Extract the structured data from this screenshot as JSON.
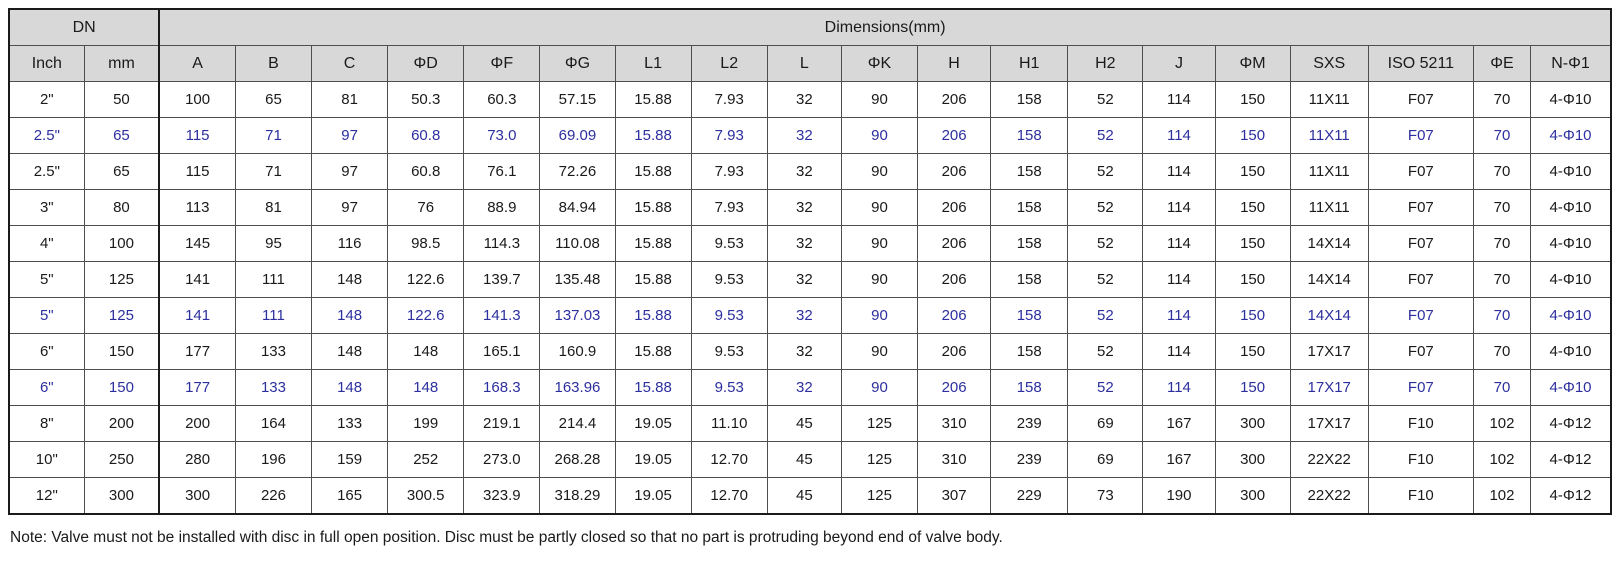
{
  "colors": {
    "highlight_text": "#2c2f9e",
    "header_bg": "#d8d8d8"
  },
  "table": {
    "dn_label": "DN",
    "dims_label": "Dimensions(mm)",
    "columns": [
      "Inch",
      "mm",
      "A",
      "B",
      "C",
      "ΦD",
      "ΦF",
      "ΦG",
      "L1",
      "L2",
      "L",
      "ΦK",
      "H",
      "H1",
      "H2",
      "J",
      "ΦM",
      "SXS",
      "ISO 5211",
      "ΦE",
      "N-Φ1"
    ],
    "rows": [
      {
        "highlighted": false,
        "cells": [
          "2\"",
          "50",
          "100",
          "65",
          "81",
          "50.3",
          "60.3",
          "57.15",
          "15.88",
          "7.93",
          "32",
          "90",
          "206",
          "158",
          "52",
          "114",
          "150",
          "11X11",
          "F07",
          "70",
          "4-Φ10"
        ]
      },
      {
        "highlighted": true,
        "cells": [
          "2.5\"",
          "65",
          "115",
          "71",
          "97",
          "60.8",
          "73.0",
          "69.09",
          "15.88",
          "7.93",
          "32",
          "90",
          "206",
          "158",
          "52",
          "114",
          "150",
          "11X11",
          "F07",
          "70",
          "4-Φ10"
        ]
      },
      {
        "highlighted": false,
        "cells": [
          "2.5\"",
          "65",
          "115",
          "71",
          "97",
          "60.8",
          "76.1",
          "72.26",
          "15.88",
          "7.93",
          "32",
          "90",
          "206",
          "158",
          "52",
          "114",
          "150",
          "11X11",
          "F07",
          "70",
          "4-Φ10"
        ]
      },
      {
        "highlighted": false,
        "cells": [
          "3\"",
          "80",
          "113",
          "81",
          "97",
          "76",
          "88.9",
          "84.94",
          "15.88",
          "7.93",
          "32",
          "90",
          "206",
          "158",
          "52",
          "114",
          "150",
          "11X11",
          "F07",
          "70",
          "4-Φ10"
        ]
      },
      {
        "highlighted": false,
        "cells": [
          "4\"",
          "100",
          "145",
          "95",
          "116",
          "98.5",
          "114.3",
          "110.08",
          "15.88",
          "9.53",
          "32",
          "90",
          "206",
          "158",
          "52",
          "114",
          "150",
          "14X14",
          "F07",
          "70",
          "4-Φ10"
        ]
      },
      {
        "highlighted": false,
        "cells": [
          "5\"",
          "125",
          "141",
          "111",
          "148",
          "122.6",
          "139.7",
          "135.48",
          "15.88",
          "9.53",
          "32",
          "90",
          "206",
          "158",
          "52",
          "114",
          "150",
          "14X14",
          "F07",
          "70",
          "4-Φ10"
        ]
      },
      {
        "highlighted": true,
        "cells": [
          "5\"",
          "125",
          "141",
          "111",
          "148",
          "122.6",
          "141.3",
          "137.03",
          "15.88",
          "9.53",
          "32",
          "90",
          "206",
          "158",
          "52",
          "114",
          "150",
          "14X14",
          "F07",
          "70",
          "4-Φ10"
        ]
      },
      {
        "highlighted": false,
        "cells": [
          "6\"",
          "150",
          "177",
          "133",
          "148",
          "148",
          "165.1",
          "160.9",
          "15.88",
          "9.53",
          "32",
          "90",
          "206",
          "158",
          "52",
          "114",
          "150",
          "17X17",
          "F07",
          "70",
          "4-Φ10"
        ]
      },
      {
        "highlighted": true,
        "cells": [
          "6\"",
          "150",
          "177",
          "133",
          "148",
          "148",
          "168.3",
          "163.96",
          "15.88",
          "9.53",
          "32",
          "90",
          "206",
          "158",
          "52",
          "114",
          "150",
          "17X17",
          "F07",
          "70",
          "4-Φ10"
        ]
      },
      {
        "highlighted": false,
        "cells": [
          "8\"",
          "200",
          "200",
          "164",
          "133",
          "199",
          "219.1",
          "214.4",
          "19.05",
          "11.10",
          "45",
          "125",
          "310",
          "239",
          "69",
          "167",
          "300",
          "17X17",
          "F10",
          "102",
          "4-Φ12"
        ]
      },
      {
        "highlighted": false,
        "cells": [
          "10\"",
          "250",
          "280",
          "196",
          "159",
          "252",
          "273.0",
          "268.28",
          "19.05",
          "12.70",
          "45",
          "125",
          "310",
          "239",
          "69",
          "167",
          "300",
          "22X22",
          "F10",
          "102",
          "4-Φ12"
        ]
      },
      {
        "highlighted": false,
        "cells": [
          "12\"",
          "300",
          "300",
          "226",
          "165",
          "300.5",
          "323.9",
          "318.29",
          "19.05",
          "12.70",
          "45",
          "125",
          "307",
          "229",
          "73",
          "190",
          "300",
          "22X22",
          "F10",
          "102",
          "4-Φ12"
        ]
      }
    ]
  },
  "note": {
    "text": "Note: Valve must not be installed with disc in full open position. Disc must be partly closed so that no part is protruding beyond end of valve body."
  }
}
